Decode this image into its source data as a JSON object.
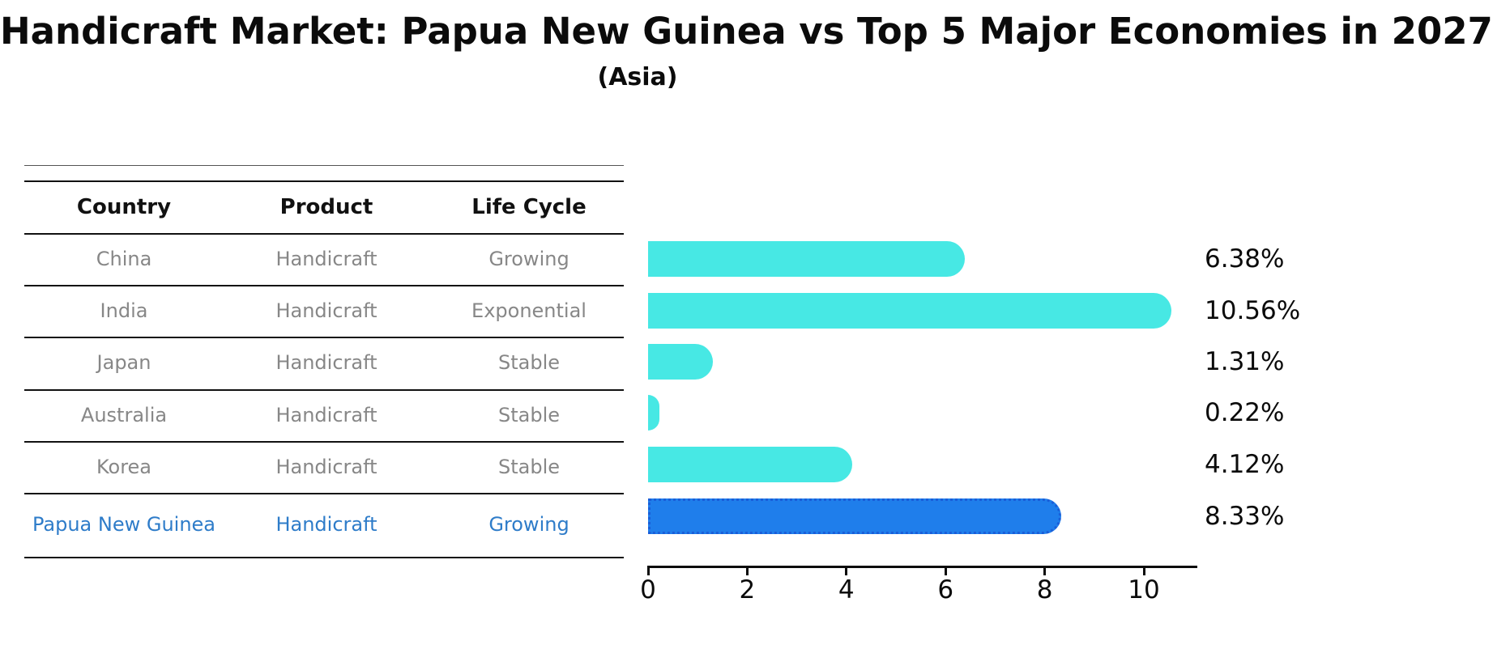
{
  "title": "Handicraft Market: Papua New Guinea vs Top 5 Major Economies in 2027",
  "subtitle": "(Asia)",
  "table": {
    "headers": [
      "Country",
      "Product",
      "Life Cycle"
    ],
    "rows": [
      {
        "country": "China",
        "product": "Handicraft",
        "life_cycle": "Growing",
        "highlight": false
      },
      {
        "country": "India",
        "product": "Handicraft",
        "life_cycle": "Exponential",
        "highlight": false
      },
      {
        "country": "Japan",
        "product": "Handicraft",
        "life_cycle": "Stable",
        "highlight": false
      },
      {
        "country": "Australia",
        "product": "Handicraft",
        "life_cycle": "Stable",
        "highlight": false
      },
      {
        "country": "Korea",
        "product": "Handicraft",
        "life_cycle": "Stable",
        "highlight": false
      },
      {
        "country": "Papua New Guinea",
        "product": "Handicraft",
        "life_cycle": "Growing",
        "highlight": true
      }
    ]
  },
  "chart_data": {
    "type": "bar",
    "orientation": "horizontal",
    "title": "Handicraft Market: Papua New Guinea vs Top 5 Major Economies in 2027 (Asia)",
    "categories": [
      "China",
      "India",
      "Japan",
      "Australia",
      "Korea",
      "Papua New Guinea"
    ],
    "values": [
      6.38,
      10.56,
      1.31,
      0.22,
      4.12,
      8.33
    ],
    "value_labels": [
      "6.38%",
      "10.56%",
      "1.31%",
      "0.22%",
      "4.12%",
      "8.33%"
    ],
    "highlight_index": 5,
    "xlabel": "",
    "ylabel": "",
    "xlim": [
      0,
      11.09
    ],
    "x_ticks": [
      0,
      2,
      4,
      6,
      8,
      10
    ],
    "grid": false,
    "legend": false,
    "bar_color": "#47e8e4",
    "highlight_bar_color": "#1f7eeb",
    "highlight_edge_color": "#1a5ed8",
    "highlight_text_color": "#2e7cc9",
    "muted_text_color": "#878787"
  }
}
